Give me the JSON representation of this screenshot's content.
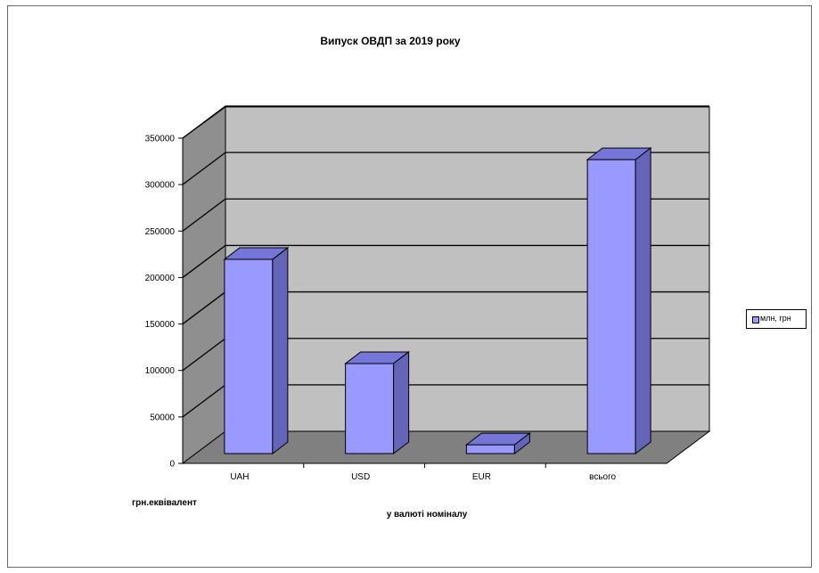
{
  "chart_data": {
    "type": "bar",
    "title": "Випуск ОВДП за 2019 року",
    "categories": [
      "UAH",
      "USD",
      "EUR",
      "всього"
    ],
    "series": [
      {
        "name": "млн, грн",
        "values": [
          220000,
          102000,
          10000,
          333000
        ]
      }
    ],
    "yticks": [
      "0",
      "50000",
      "100000",
      "150000",
      "200000",
      "250000",
      "300000",
      "350000"
    ],
    "ylim": [
      0,
      350000
    ],
    "grid": true,
    "legend_position": "right",
    "three_d": true,
    "annotations": [
      "грн.еквівалент",
      "у валюті номіналу"
    ],
    "colors": {
      "bar_front": "#9999ff",
      "bar_top": "#7676d8",
      "bar_side": "#6464b8",
      "plot_back": "#c0c0c0",
      "plot_floor": "#808080",
      "plot_side": "#8f8f8f"
    }
  }
}
